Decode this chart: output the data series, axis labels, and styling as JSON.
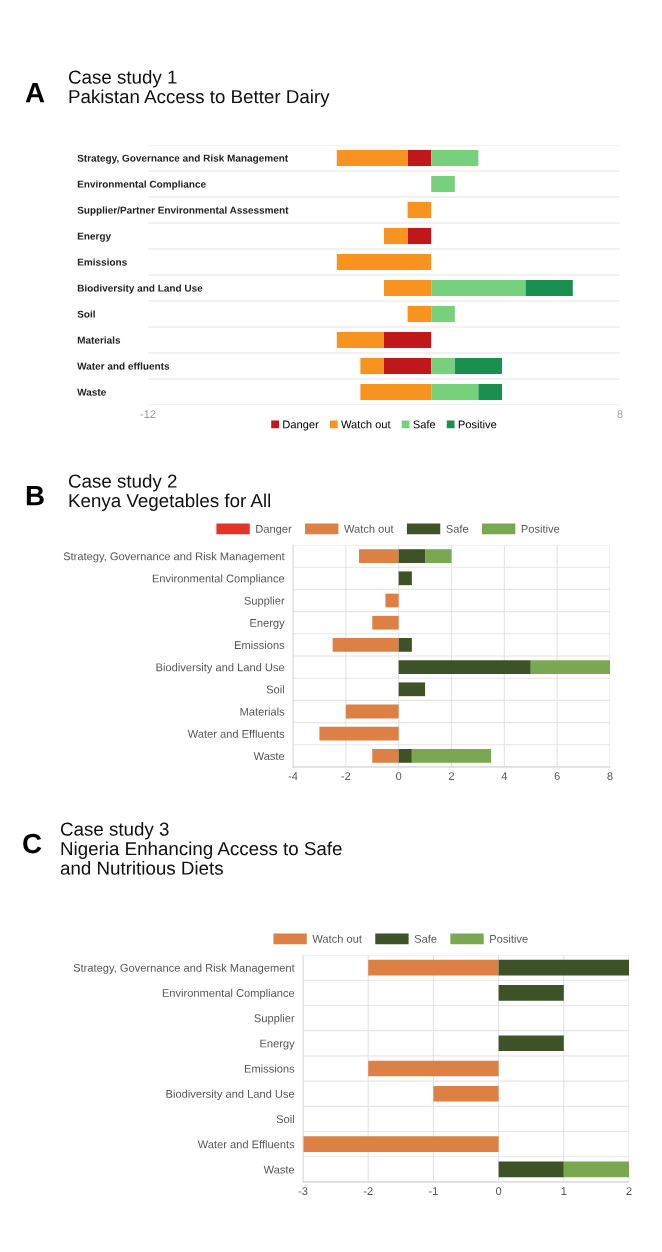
{
  "chart_data": [
    {
      "type": "bar",
      "orientation": "horizontal",
      "stacked": true,
      "title": "Case study 1\nPakistan Access to Better Dairy",
      "annotations": [
        "A"
      ],
      "categories": [
        "Strategy, Governance and Risk Management",
        "Environmental Compliance",
        "Supplier/Partner Environmental Assessment",
        "Energy",
        "Emissions",
        "Biodiversity and Land Use",
        "Soil",
        "Materials",
        "Water and effluents",
        "Waste"
      ],
      "series": [
        {
          "name": "Danger",
          "color": "#c0171a",
          "values": [
            -1,
            null,
            null,
            -1,
            null,
            null,
            null,
            -2,
            -2,
            null
          ]
        },
        {
          "name": "Watch out",
          "color": "#f7931e",
          "values": [
            -3,
            null,
            -1,
            -1,
            -4,
            -2,
            -1,
            -2,
            -1,
            -3
          ]
        },
        {
          "name": "Safe",
          "color": "#77d07c",
          "values": [
            2,
            1,
            null,
            null,
            null,
            4,
            1,
            null,
            1,
            2
          ]
        },
        {
          "name": "Positive",
          "color": "#1a8f4f",
          "values": [
            null,
            null,
            null,
            null,
            null,
            2,
            null,
            null,
            2,
            1
          ]
        }
      ],
      "xlim": [
        -12,
        8
      ],
      "xticks": [
        -12,
        8
      ],
      "grid": false,
      "legend": "bottom"
    },
    {
      "type": "bar",
      "orientation": "horizontal",
      "stacked": true,
      "title": "Case study 2\nKenya Vegetables for All",
      "annotations": [
        "B"
      ],
      "categories": [
        "Strategy, Governance and Risk Management",
        "Environmental Compliance",
        "Supplier",
        "Energy",
        "Emissions",
        "Biodiversity and Land Use",
        "Soil",
        "Materials",
        "Water and Effluents",
        "Waste"
      ],
      "series": [
        {
          "name": "Danger",
          "color": "#e53329",
          "values": [
            null,
            null,
            null,
            null,
            null,
            null,
            null,
            null,
            null,
            null
          ]
        },
        {
          "name": "Watch out",
          "color": "#dc8044",
          "values": [
            -1.5,
            null,
            -0.5,
            -1,
            -2.5,
            null,
            null,
            -2,
            -3,
            -1
          ]
        },
        {
          "name": "Safe",
          "color": "#3d5226",
          "values": [
            1,
            0.5,
            null,
            null,
            0.5,
            5,
            1,
            null,
            null,
            0.5
          ]
        },
        {
          "name": "Positive",
          "color": "#79a851",
          "values": [
            1,
            null,
            null,
            null,
            null,
            3,
            null,
            null,
            null,
            3
          ]
        }
      ],
      "xlim": [
        -4,
        8
      ],
      "xticks": [
        -4,
        -2,
        0,
        2,
        4,
        6,
        8
      ],
      "grid": "x",
      "legend": "top"
    },
    {
      "type": "bar",
      "orientation": "horizontal",
      "stacked": true,
      "title": "Case study 3\nNigeria Enhancing Access to Safe\nand Nutritious Diets",
      "annotations": [
        "C"
      ],
      "categories": [
        "Strategy, Governance and Risk Management",
        "Environmental Compliance",
        "Supplier",
        "Energy",
        "Emissions",
        "Biodiversity and Land Use",
        "Soil",
        "Water and Effluents",
        "Waste"
      ],
      "series": [
        {
          "name": "Watch out",
          "color": "#dc8044",
          "values": [
            -2,
            null,
            null,
            null,
            -2,
            -1,
            null,
            -3,
            null
          ]
        },
        {
          "name": "Safe",
          "color": "#3d5226",
          "values": [
            2,
            1,
            null,
            1,
            null,
            null,
            null,
            null,
            1
          ]
        },
        {
          "name": "Positive",
          "color": "#79a851",
          "values": [
            null,
            null,
            null,
            null,
            null,
            null,
            null,
            null,
            1
          ]
        }
      ],
      "xlim": [
        -3,
        2
      ],
      "xticks": [
        -3,
        -2,
        -1,
        0,
        1,
        2
      ],
      "grid": "x",
      "legend": "top"
    }
  ]
}
